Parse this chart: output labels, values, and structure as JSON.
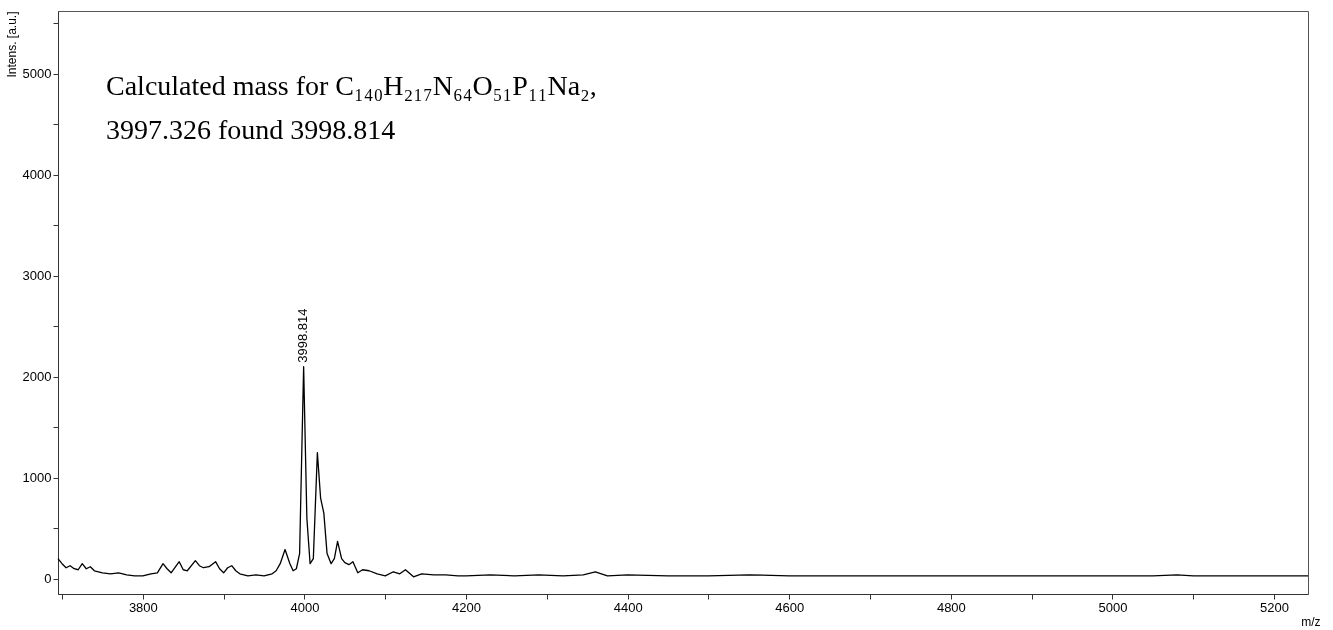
{
  "chart_data": {
    "type": "line",
    "xlabel": "m/z",
    "ylabel": "Intens. [a.u.]",
    "x": [
      3695,
      3700,
      3705,
      3710,
      3715,
      3720,
      3725,
      3730,
      3735,
      3740,
      3750,
      3760,
      3770,
      3780,
      3790,
      3800,
      3810,
      3818,
      3825,
      3830,
      3835,
      3845,
      3850,
      3855,
      3865,
      3870,
      3875,
      3882,
      3890,
      3895,
      3900,
      3905,
      3910,
      3915,
      3920,
      3930,
      3940,
      3950,
      3960,
      3965,
      3970,
      3976,
      3982,
      3986,
      3990,
      3994,
      3999,
      4003,
      4007,
      4011,
      4016,
      4020,
      4024,
      4028,
      4033,
      4037,
      4041,
      4046,
      4050,
      4055,
      4060,
      4066,
      4072,
      4080,
      4090,
      4100,
      4110,
      4118,
      4125,
      4135,
      4145,
      4160,
      4175,
      4190,
      4200,
      4230,
      4260,
      4290,
      4320,
      4345,
      4360,
      4375,
      4400,
      4450,
      4500,
      4550,
      4600,
      4650,
      4700,
      4750,
      4800,
      4850,
      4900,
      4950,
      5000,
      5050,
      5080,
      5100,
      5150,
      5200,
      5242
    ],
    "series": [
      {
        "color": "#000000",
        "values": [
          200,
          150,
          110,
          130,
          100,
          90,
          150,
          100,
          120,
          80,
          60,
          50,
          60,
          40,
          30,
          30,
          50,
          60,
          150,
          100,
          60,
          170,
          90,
          80,
          180,
          130,
          110,
          120,
          170,
          100,
          60,
          110,
          130,
          80,
          50,
          30,
          40,
          30,
          50,
          80,
          150,
          290,
          150,
          80,
          100,
          250,
          2100,
          600,
          150,
          200,
          1250,
          800,
          650,
          250,
          150,
          200,
          370,
          200,
          160,
          140,
          170,
          60,
          90,
          80,
          50,
          30,
          70,
          50,
          90,
          20,
          50,
          40,
          40,
          30,
          30,
          40,
          30,
          40,
          30,
          40,
          70,
          30,
          40,
          30,
          30,
          40,
          30,
          30,
          30,
          30,
          30,
          30,
          30,
          30,
          30,
          30,
          40,
          30,
          30,
          30,
          30
        ]
      }
    ],
    "xlim": [
      3695,
      5242
    ],
    "xticks": [
      {
        "value": 3700,
        "label": null
      },
      3800,
      {
        "value": 3900,
        "label": null
      },
      4000,
      {
        "value": 4100,
        "label": null
      },
      4200,
      {
        "value": 4300,
        "label": null
      },
      4400,
      {
        "value": 4500,
        "label": null
      },
      4600,
      {
        "value": 4700,
        "label": null
      },
      4800,
      {
        "value": 4900,
        "label": null
      },
      5000,
      {
        "value": 5100,
        "label": null
      },
      5200
    ],
    "ylim": [
      -150,
      5620
    ],
    "yticks": [
      0,
      {
        "value": 500,
        "label": null
      },
      1000,
      {
        "value": 1500,
        "label": null
      },
      2000,
      {
        "value": 2500,
        "label": null
      },
      3000,
      {
        "value": 3500,
        "label": null
      },
      4000,
      {
        "value": 4500,
        "label": null
      },
      5000,
      {
        "value": 5500,
        "label": null
      }
    ],
    "annotations": [
      "Calculated mass for C₁₄₀H₂₁₇N₆₄O₅₁P₁₁Na₂,",
      "3997.326 found 3998.814",
      {
        "text": "3998.814",
        "x": 3998.814,
        "y": 2100
      }
    ],
    "grid": false,
    "marker": "none",
    "line_style": "solid"
  }
}
